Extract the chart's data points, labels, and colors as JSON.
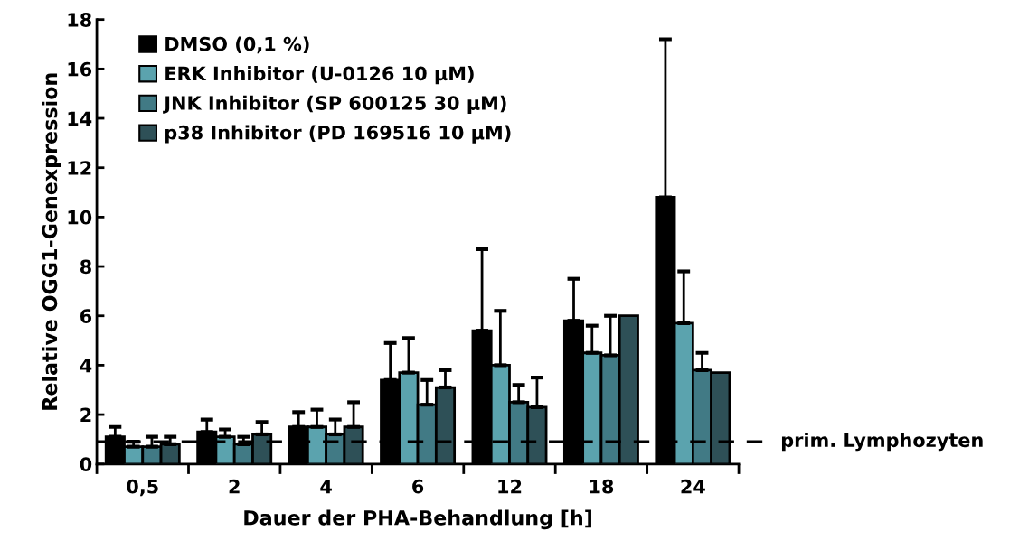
{
  "chart_data": {
    "type": "bar",
    "xlabel": "Dauer der PHA-Behandlung [h]",
    "ylabel": "Relative OGG1-Genexpression",
    "categories": [
      "0,5",
      "2",
      "4",
      "6",
      "12",
      "18",
      "24"
    ],
    "series": [
      {
        "name": "DMSO (0,1 %)",
        "color": "#000000",
        "values": [
          1.1,
          1.3,
          1.5,
          3.4,
          5.4,
          5.8,
          10.8
        ],
        "errors": [
          [
            1.1,
            1.5
          ],
          [
            1.3,
            1.8
          ],
          [
            1.5,
            2.1
          ],
          [
            3.4,
            4.9
          ],
          [
            5.4,
            8.7
          ],
          [
            5.8,
            7.5
          ],
          [
            10.8,
            17.2
          ]
        ]
      },
      {
        "name": "ERK Inhibitor (U-0126 10 µM)",
        "color": "#5ba3ae",
        "values": [
          0.7,
          1.1,
          1.5,
          3.7,
          4.0,
          4.5,
          5.7
        ],
        "errors": [
          [
            0.7,
            0.9
          ],
          [
            1.1,
            1.4
          ],
          [
            1.5,
            2.2
          ],
          [
            3.7,
            5.1
          ],
          [
            4.0,
            6.2
          ],
          [
            4.5,
            5.6
          ],
          [
            5.7,
            7.8
          ]
        ]
      },
      {
        "name": "JNK Inhibitor (SP 600125 30 µM)",
        "color": "#417a85",
        "values": [
          0.7,
          0.8,
          1.2,
          2.4,
          2.5,
          4.4,
          3.8
        ],
        "errors": [
          [
            0.7,
            1.1
          ],
          [
            0.8,
            1.1
          ],
          [
            1.2,
            1.8
          ],
          [
            2.4,
            3.4
          ],
          [
            2.5,
            3.2
          ],
          [
            4.4,
            6.0
          ],
          [
            3.8,
            4.5
          ]
        ]
      },
      {
        "name": "p38 Inhibitor (PD 169516 10 µM)",
        "color": "#2e5057",
        "values": [
          0.8,
          1.2,
          1.5,
          3.1,
          2.3,
          6.0,
          3.7
        ],
        "errors": [
          [
            0.8,
            1.1
          ],
          [
            1.2,
            1.7
          ],
          [
            1.5,
            2.5
          ],
          [
            3.1,
            3.8
          ],
          [
            2.3,
            3.5
          ],
          null,
          null
        ]
      }
    ],
    "ylim": [
      0,
      18
    ],
    "yticks": [
      0,
      2,
      4,
      6,
      8,
      10,
      12,
      14,
      16,
      18
    ],
    "ref_lines": [
      {
        "axis": "y",
        "value": 0.9,
        "label": "prim. Lymphozyten",
        "color": "#000000",
        "line_style": "dashed"
      }
    ],
    "legend": "top left",
    "grid": false
  }
}
